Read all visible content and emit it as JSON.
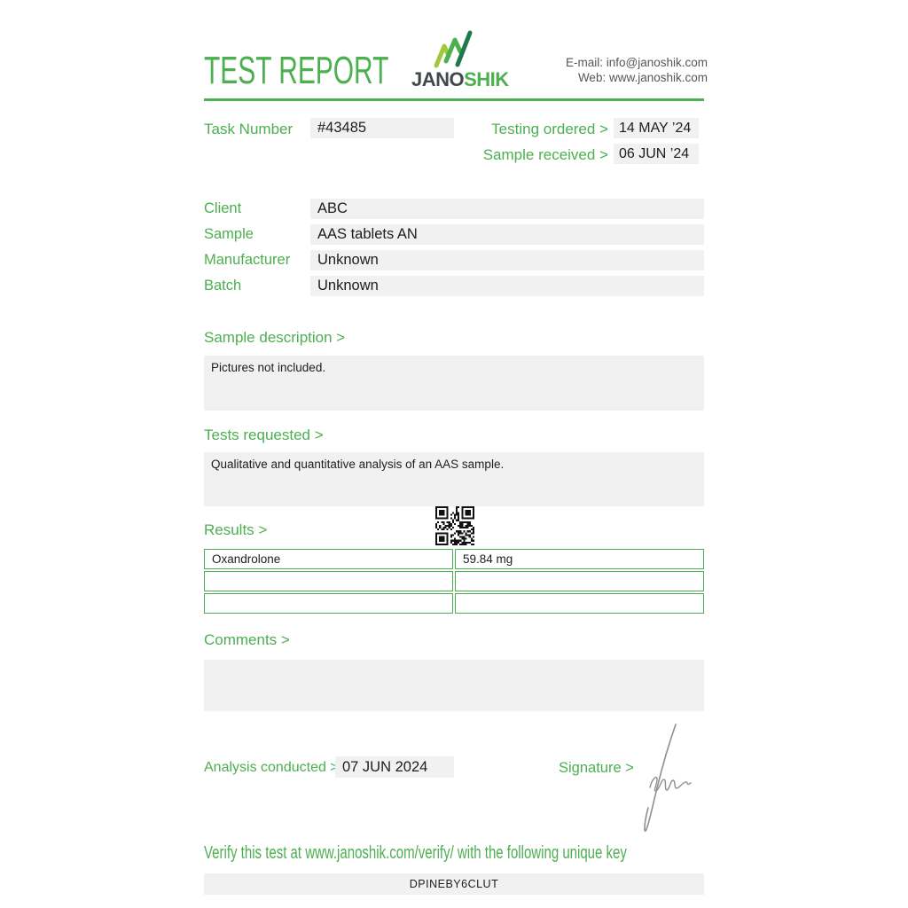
{
  "header": {
    "title": "TEST REPORT",
    "logo": {
      "icon": "bar-chart-growth-icon",
      "word_dark": "JANO",
      "word_green": "SHIK"
    },
    "contact": {
      "email": "E-mail: info@janoshik.com",
      "web": "Web: www.janoshik.com"
    }
  },
  "meta": {
    "task_number_label": "Task Number",
    "task_number_value": "#43485",
    "testing_ordered_label": "Testing ordered  >",
    "testing_ordered_value": "14 MAY ’24",
    "sample_received_label": "Sample received >",
    "sample_received_value": "06 JUN ’24"
  },
  "details": {
    "rows": [
      {
        "label": "Client",
        "value": "ABC"
      },
      {
        "label": "Sample",
        "value": "AAS tablets AN"
      },
      {
        "label": "Manufacturer",
        "value": "Unknown"
      },
      {
        "label": "Batch",
        "value": "Unknown"
      }
    ]
  },
  "sample_description": {
    "heading": "Sample description >",
    "text": "Pictures not included."
  },
  "tests_requested": {
    "heading": "Tests requested >",
    "text": "Qualitative and quantitative analysis of an AAS sample."
  },
  "results": {
    "heading": "Results >",
    "qr_icon": "qr-code",
    "table": {
      "rows": [
        {
          "substance": "Oxandrolone",
          "amount": "59.84 mg"
        },
        {
          "substance": "",
          "amount": ""
        },
        {
          "substance": "",
          "amount": ""
        }
      ]
    }
  },
  "comments": {
    "heading": "Comments >",
    "text": ""
  },
  "footer": {
    "analysis_label": "Analysis conducted >",
    "analysis_value": "07 JUN 2024",
    "signature_label": "Signature >",
    "signature_icon": "handwritten-signature",
    "verify_text": "Verify this test at www.janoshik.com/verify/ with the following unique key",
    "unique_key": "DPINEBY6CLUT"
  },
  "colors": {
    "accent_green": "#4caf50",
    "logo_dark_green": "#1e7a4c",
    "logo_yellow_green": "#a0c83b",
    "wordmark_dark": "#40494a",
    "text_dark": "#1d1d1b",
    "field_gray": "#f1f1f1",
    "contact_gray": "#565656",
    "signature_gray": "#8f8f8f"
  }
}
